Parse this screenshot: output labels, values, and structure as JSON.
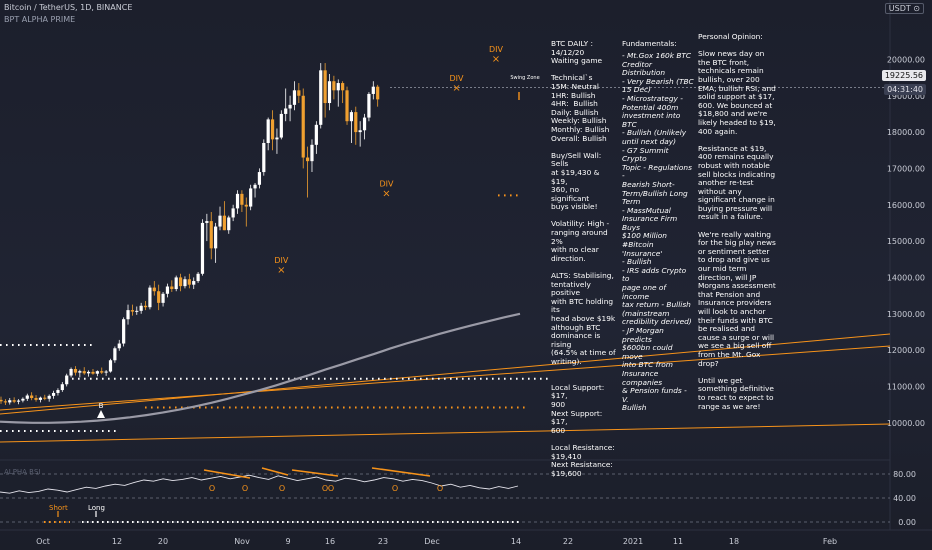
{
  "header": {
    "symbol_line": "Bitcoin / TetherUS, 1D, BINANCE",
    "indicator_name": "BPT ALPHA PRIME",
    "currency_badge": "USDT",
    "currency_caret": "⊙"
  },
  "price_tags": {
    "last_price": "19225.56",
    "countdown": "04:31:40"
  },
  "annotations": {
    "swing_label": "Swing Zone",
    "buy_label": "B",
    "short_label": "Short",
    "long_label": "Long",
    "div_label": "DIV",
    "x_mark": "×",
    "osc_mark": "O",
    "osc_name": "ALPHA RSI"
  },
  "notes": {
    "col1": "BTC DAILY :\n14/12/20\nWaiting game\n\nTechnical`s\n15M: Neutral\n1HR: Bullish\n4HR:  Bullish\nDaily: Bullish\nWeekly: Bullish\nMonthly: Bullish\nOverall: Bullish\n\nBuy/Sell Wall: Sells\nat $19,430 & $19,\n360, no significant\nbuys visible!\n\nVolatility: High -\nranging around 2%\nwith no clear\ndirection.\n\nALTS: Stabilising,\ntentatively positive\nwith BTC holding its\nhead above $19k\nalthough BTC\ndominance is rising\n(64.5% at time of\nwriting).\n\n\nLocal Support: $17,\n900\nNext Support: $17,\n600\n\nLocal Resistance:\n$19,410\nNext Resistance:\n$19,600",
    "col2_title": "Fundamentals:",
    "col2": "- Mt.Gox 160k BTC\nCreditor Distribution\n- Very Bearish (TBC\n15 Dec)\n- Microstrategy -\nPotential 400m\ninvestment into BTC\n- Bullish (Unlikely\nuntil next day)\n- G7 Summit Crypto\nTopic - Regulations -\nBearish Short-\nTerm/Bullish Long\nTerm\n- MassMutual\nInsurance Firm Buys\n$100 Million\n#Bitcoin 'Insurance'\n- Bullish\n- IRS adds Crypto to\npage one of income\ntax return - Bullish\n(mainstream\ncredibility derived)\n- JP Morgan predicts\n$600bn could move\ninto BTC from\nInsurance companies\n& Pension funds - V.\nBullish",
    "col3": "Personal Opinion:\n\nSlow news day on\nthe BTC front,\ntechnicals remain\nbullish, over 200\nEMA, bullish RSI, and\nsolid support at $17,\n600. We bounced at\n$18,800 and we're\nlikely headed to $19,\n400 again.\n\nResistance at $19,\n400 remains equally\nrobust with notable\nsell blocks indicating\nanother re-test\nwithout any\nsignificant change in\nbuying pressure will\nresult in a failure.\n\nWe're really waiting\nfor the big play news\nor sentiment setter\nto drop and give us\nour mid term\ndirection, will JP\nMorgans assessment\nthat Pension and\nInsurance providers\nwill look to anchor\ntheir funds with BTC\nbe realised and\ncause a surge or will\nwe see a big sell off\nfrom the Mt. Gox\ndrop?\n\nUntil we get\nsomething definitive\nto react to expect to\nrange as we are!"
  },
  "colors": {
    "bull": "#ffffff",
    "bear": "#f0a030",
    "accent": "#f7931a",
    "ema": "#9a9aa6",
    "background": "#1c1f2c"
  },
  "chart_data": {
    "type": "candlestick",
    "x_ticks": [
      "Oct",
      "12",
      "20",
      "Nov",
      "9",
      "16",
      "23",
      "Dec",
      "14",
      "22",
      "2021",
      "11",
      "18",
      "Feb"
    ],
    "y_ticks": [
      "10000.00",
      "11000.00",
      "12000.00",
      "13000.00",
      "14000.00",
      "15000.00",
      "16000.00",
      "17000.00",
      "18000.00",
      "19000.00",
      "20000.00"
    ],
    "ylim": [
      9250,
      20700
    ],
    "candles": [
      {
        "o": 10630,
        "h": 10720,
        "l": 10520,
        "c": 10590
      },
      {
        "o": 10590,
        "h": 10650,
        "l": 10490,
        "c": 10560
      },
      {
        "o": 10560,
        "h": 10680,
        "l": 10500,
        "c": 10620
      },
      {
        "o": 10620,
        "h": 10700,
        "l": 10540,
        "c": 10580
      },
      {
        "o": 10580,
        "h": 10650,
        "l": 10510,
        "c": 10610
      },
      {
        "o": 10610,
        "h": 10700,
        "l": 10560,
        "c": 10660
      },
      {
        "o": 10660,
        "h": 10800,
        "l": 10600,
        "c": 10750
      },
      {
        "o": 10750,
        "h": 10840,
        "l": 10620,
        "c": 10680
      },
      {
        "o": 10680,
        "h": 10760,
        "l": 10580,
        "c": 10630
      },
      {
        "o": 10630,
        "h": 10720,
        "l": 10560,
        "c": 10690
      },
      {
        "o": 10690,
        "h": 10770,
        "l": 10620,
        "c": 10660
      },
      {
        "o": 10660,
        "h": 10780,
        "l": 10580,
        "c": 10740
      },
      {
        "o": 10740,
        "h": 10880,
        "l": 10660,
        "c": 10820
      },
      {
        "o": 10820,
        "h": 10950,
        "l": 10750,
        "c": 10900
      },
      {
        "o": 10900,
        "h": 11120,
        "l": 10850,
        "c": 11060
      },
      {
        "o": 11060,
        "h": 11350,
        "l": 11000,
        "c": 11300
      },
      {
        "o": 11300,
        "h": 11520,
        "l": 11250,
        "c": 11480
      },
      {
        "o": 11480,
        "h": 11560,
        "l": 11300,
        "c": 11380
      },
      {
        "o": 11380,
        "h": 11460,
        "l": 11250,
        "c": 11420
      },
      {
        "o": 11420,
        "h": 11530,
        "l": 11320,
        "c": 11360
      },
      {
        "o": 11360,
        "h": 11440,
        "l": 11270,
        "c": 11400
      },
      {
        "o": 11400,
        "h": 11480,
        "l": 11320,
        "c": 11350
      },
      {
        "o": 11350,
        "h": 11440,
        "l": 11280,
        "c": 11420
      },
      {
        "o": 11420,
        "h": 11520,
        "l": 11340,
        "c": 11380
      },
      {
        "o": 11380,
        "h": 11450,
        "l": 11290,
        "c": 11410
      },
      {
        "o": 11410,
        "h": 11760,
        "l": 11380,
        "c": 11720
      },
      {
        "o": 11720,
        "h": 12100,
        "l": 11650,
        "c": 12050
      },
      {
        "o": 12050,
        "h": 12280,
        "l": 11980,
        "c": 12180
      },
      {
        "o": 12180,
        "h": 12900,
        "l": 12100,
        "c": 12850
      },
      {
        "o": 12850,
        "h": 13250,
        "l": 12700,
        "c": 13100
      },
      {
        "o": 13100,
        "h": 13250,
        "l": 12950,
        "c": 13060
      },
      {
        "o": 13060,
        "h": 13200,
        "l": 12970,
        "c": 13080
      },
      {
        "o": 13080,
        "h": 13300,
        "l": 13000,
        "c": 13220
      },
      {
        "o": 13220,
        "h": 13350,
        "l": 13100,
        "c": 13180
      },
      {
        "o": 13180,
        "h": 13780,
        "l": 13120,
        "c": 13720
      },
      {
        "o": 13720,
        "h": 13900,
        "l": 13500,
        "c": 13620
      },
      {
        "o": 13620,
        "h": 13800,
        "l": 13100,
        "c": 13300
      },
      {
        "o": 13300,
        "h": 13600,
        "l": 13200,
        "c": 13550
      },
      {
        "o": 13550,
        "h": 13830,
        "l": 13450,
        "c": 13750
      },
      {
        "o": 13750,
        "h": 13920,
        "l": 13600,
        "c": 13680
      },
      {
        "o": 13680,
        "h": 14050,
        "l": 13620,
        "c": 14000
      },
      {
        "o": 14000,
        "h": 14100,
        "l": 13620,
        "c": 13760
      },
      {
        "o": 13760,
        "h": 14030,
        "l": 13700,
        "c": 13950
      },
      {
        "o": 13950,
        "h": 14100,
        "l": 13700,
        "c": 13800
      },
      {
        "o": 13800,
        "h": 14000,
        "l": 13680,
        "c": 13900
      },
      {
        "o": 13900,
        "h": 14150,
        "l": 13850,
        "c": 14100
      },
      {
        "o": 14100,
        "h": 15600,
        "l": 14050,
        "c": 15500
      },
      {
        "o": 15500,
        "h": 15750,
        "l": 15000,
        "c": 15550
      },
      {
        "o": 15550,
        "h": 15800,
        "l": 14500,
        "c": 14800
      },
      {
        "o": 14800,
        "h": 15500,
        "l": 14400,
        "c": 15400
      },
      {
        "o": 15400,
        "h": 15950,
        "l": 15300,
        "c": 15700
      },
      {
        "o": 15700,
        "h": 16100,
        "l": 15300,
        "c": 15300
      },
      {
        "o": 15300,
        "h": 15700,
        "l": 15200,
        "c": 15650
      },
      {
        "o": 15650,
        "h": 16000,
        "l": 15550,
        "c": 15900
      },
      {
        "o": 15900,
        "h": 16400,
        "l": 15750,
        "c": 16300
      },
      {
        "o": 16300,
        "h": 16400,
        "l": 15800,
        "c": 16000
      },
      {
        "o": 16000,
        "h": 16200,
        "l": 15400,
        "c": 15950
      },
      {
        "o": 15950,
        "h": 16550,
        "l": 15850,
        "c": 16450
      },
      {
        "o": 16450,
        "h": 16600,
        "l": 16200,
        "c": 16550
      },
      {
        "o": 16550,
        "h": 17000,
        "l": 16450,
        "c": 16900
      },
      {
        "o": 16900,
        "h": 17800,
        "l": 16800,
        "c": 17700
      },
      {
        "o": 17700,
        "h": 18400,
        "l": 17500,
        "c": 18350
      },
      {
        "o": 18350,
        "h": 18600,
        "l": 17500,
        "c": 17800
      },
      {
        "o": 17800,
        "h": 18100,
        "l": 17400,
        "c": 17850
      },
      {
        "o": 17850,
        "h": 18600,
        "l": 17800,
        "c": 18500
      },
      {
        "o": 18500,
        "h": 19200,
        "l": 18300,
        "c": 18650
      },
      {
        "o": 18650,
        "h": 19000,
        "l": 18300,
        "c": 18750
      },
      {
        "o": 18750,
        "h": 19400,
        "l": 18600,
        "c": 19150
      },
      {
        "o": 19150,
        "h": 19350,
        "l": 18800,
        "c": 19000
      },
      {
        "o": 19000,
        "h": 19200,
        "l": 17000,
        "c": 17300
      },
      {
        "o": 17300,
        "h": 17600,
        "l": 16200,
        "c": 17200
      },
      {
        "o": 17200,
        "h": 17800,
        "l": 16900,
        "c": 17650
      },
      {
        "o": 17650,
        "h": 18300,
        "l": 17400,
        "c": 18200
      },
      {
        "o": 18200,
        "h": 19900,
        "l": 18100,
        "c": 19700
      },
      {
        "o": 19700,
        "h": 19900,
        "l": 18400,
        "c": 18800
      },
      {
        "o": 18800,
        "h": 19600,
        "l": 18600,
        "c": 19400
      },
      {
        "o": 19400,
        "h": 19550,
        "l": 18900,
        "c": 19150
      },
      {
        "o": 19150,
        "h": 19450,
        "l": 18700,
        "c": 19350
      },
      {
        "o": 19350,
        "h": 19400,
        "l": 18800,
        "c": 19150
      },
      {
        "o": 19150,
        "h": 19250,
        "l": 18200,
        "c": 18300
      },
      {
        "o": 18300,
        "h": 18600,
        "l": 17700,
        "c": 18550
      },
      {
        "o": 18550,
        "h": 18700,
        "l": 17650,
        "c": 18000
      },
      {
        "o": 18000,
        "h": 18300,
        "l": 17600,
        "c": 18050
      },
      {
        "o": 18050,
        "h": 18500,
        "l": 17800,
        "c": 18400
      },
      {
        "o": 18400,
        "h": 19100,
        "l": 18300,
        "c": 19050
      },
      {
        "o": 19050,
        "h": 19400,
        "l": 18900,
        "c": 19250
      },
      {
        "o": 19250,
        "h": 19300,
        "l": 18700,
        "c": 18900
      }
    ],
    "ema": [
      10030,
      10010,
      10000,
      10000,
      10010,
      10030,
      10060,
      10100,
      10150,
      10210,
      10280,
      10360,
      10450,
      10550,
      10660,
      10780,
      10900,
      11030,
      11170,
      11310,
      11460,
      11600,
      11750,
      11890,
      12040,
      12180,
      12310,
      12440,
      12560,
      12680,
      12790,
      12900,
      13000
    ],
    "div_labels": [
      {
        "x": 64,
        "v": 14400
      },
      {
        "x": 88,
        "v": 16500
      },
      {
        "x": 104,
        "v": 19400
      },
      {
        "x": 113,
        "v": 20200
      }
    ],
    "support_levels": [
      11210,
      10420,
      16260
    ],
    "rsi": {
      "ylim": [
        0,
        100
      ],
      "y_ticks": [
        "80.00",
        "40.00",
        "0.00"
      ]
    }
  }
}
